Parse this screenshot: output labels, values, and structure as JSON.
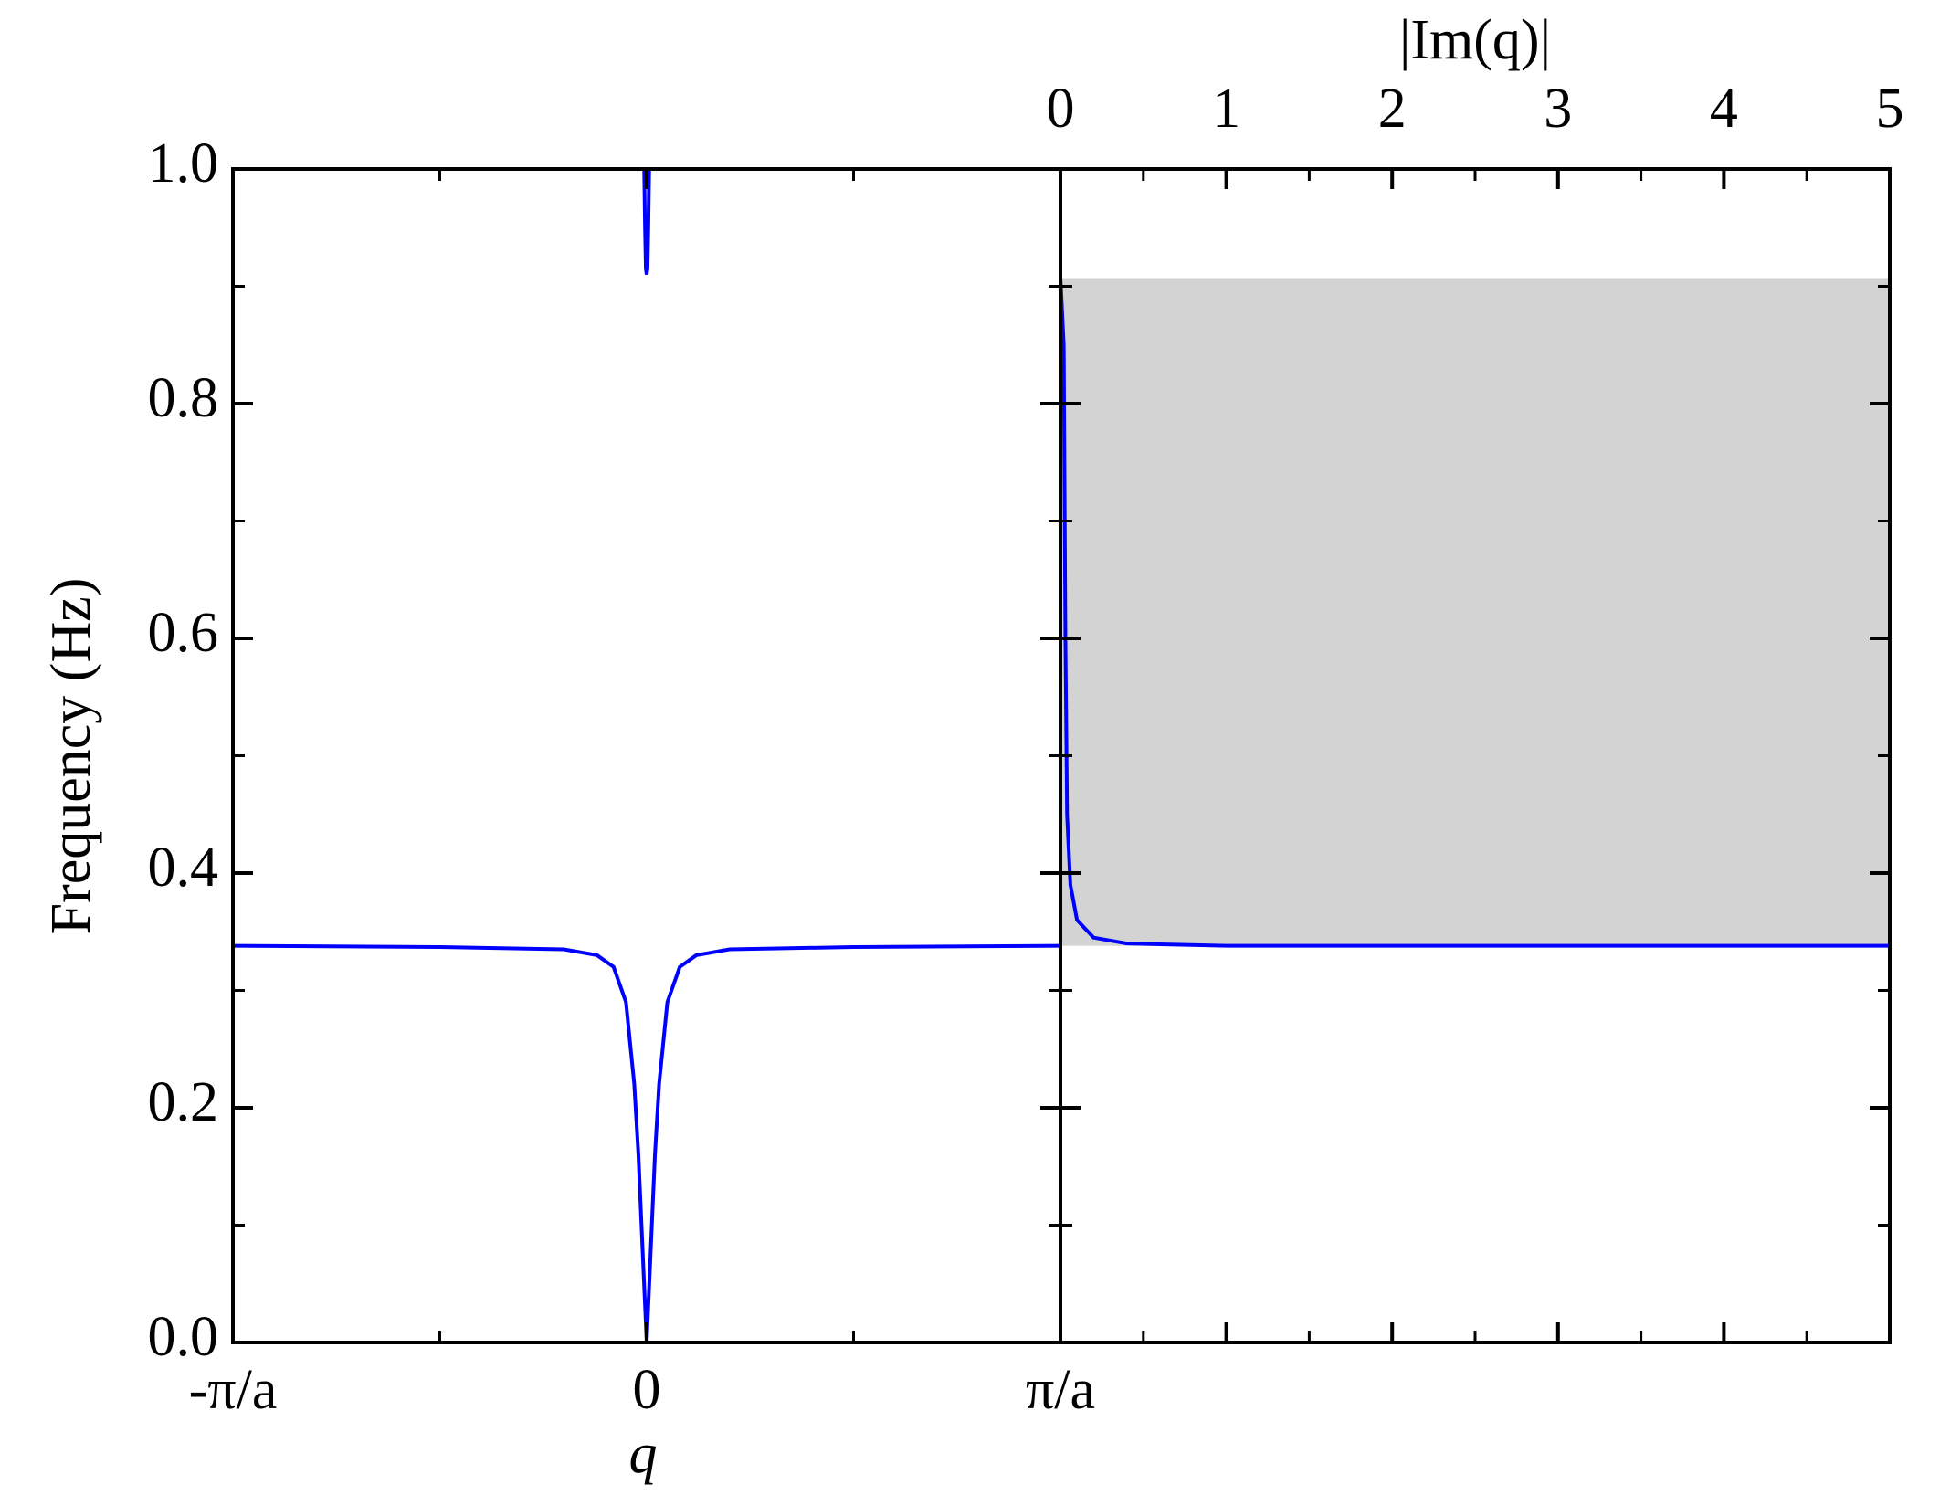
{
  "chart_data": [
    {
      "type": "line",
      "xlabel": "q",
      "ylabel": "Frequency (Hz)",
      "xlim": [
        -1,
        1
      ],
      "xticks": [
        {
          "value": -1,
          "label": "-π/a"
        },
        0,
        {
          "value": 1,
          "label": "π/a"
        }
      ],
      "ylim": [
        0,
        1
      ],
      "yticks": [
        {
          "value": 0,
          "label": "0.0"
        },
        0.2,
        0.4,
        0.6,
        0.8,
        {
          "value": 1,
          "label": "1.0"
        }
      ],
      "series": [
        {
          "color": "#0000ff",
          "x": [
            -1,
            -0.5,
            -0.2,
            -0.12,
            -0.08,
            -0.05,
            -0.03,
            -0.02,
            -0.01,
            -0.005,
            0,
            0.005,
            0.01,
            0.02,
            0.03,
            0.05,
            0.08,
            0.12,
            0.2,
            0.5,
            1
          ],
          "values": [
            0.338,
            0.337,
            0.335,
            0.33,
            0.32,
            0.29,
            0.22,
            0.16,
            0.08,
            0.04,
            0,
            0.04,
            0.08,
            0.16,
            0.22,
            0.29,
            0.32,
            0.33,
            0.335,
            0.337,
            0.338
          ]
        },
        {
          "color": "#0000ff",
          "x": [
            -0.006,
            -0.004,
            -0.002,
            0,
            0.002,
            0.004,
            0.006
          ],
          "values": [
            1,
            0.95,
            0.915,
            0.91,
            0.915,
            0.95,
            1
          ]
        }
      ]
    },
    {
      "type": "line",
      "xlabel": "|Im(q)|",
      "xaxis_position": "top",
      "xlim": [
        0,
        5
      ],
      "xticks": [
        0,
        1,
        2,
        3,
        4,
        5
      ],
      "ylim": [
        0,
        1
      ],
      "shaded_region": {
        "y": [
          0.338,
          0.907
        ],
        "color": "#d3d3d3"
      },
      "series": [
        {
          "color": "#0000ff",
          "x": [
            0,
            0.02,
            0.03,
            0.04,
            0.06,
            0.1,
            0.2,
            0.4,
            1,
            5
          ],
          "values": [
            0.907,
            0.85,
            0.6,
            0.45,
            0.39,
            0.36,
            0.345,
            0.34,
            0.338,
            0.338
          ]
        }
      ]
    }
  ]
}
